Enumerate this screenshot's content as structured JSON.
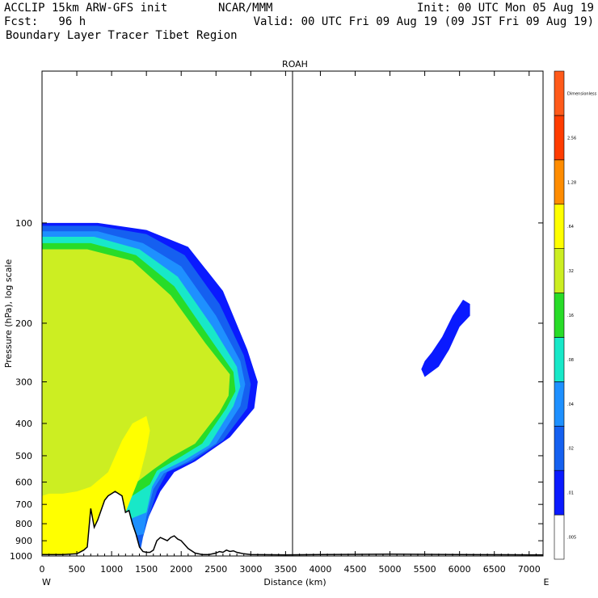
{
  "header": {
    "left_line1": "ACCLIP 15km ARW-GFS init",
    "center_line1": "NCAR/MMM",
    "right_line1": "Init: 00 UTC Mon 05 Aug 19",
    "left_line2": "Fcst:   96 h",
    "right_line2": "Valid: 00 UTC Fri 09 Aug 19 (09 JST Fri 09 Aug 19)",
    "line3": "Boundary Layer Tracer  Tibet Region"
  },
  "chart_data": {
    "type": "heatmap",
    "title": "ROAH",
    "xlabel": "Distance (km)",
    "ylabel": "Pressure (hPa), log scale",
    "x_ticks": [
      "0",
      "500",
      "1000",
      "1500",
      "2000",
      "2500",
      "3000",
      "3500",
      "4000",
      "4500",
      "5000",
      "5500",
      "6000",
      "6500",
      "7000"
    ],
    "x_tick_values": [
      0,
      500,
      1000,
      1500,
      2000,
      2500,
      3000,
      3500,
      4000,
      4500,
      5000,
      5500,
      6000,
      6500,
      7000
    ],
    "y_ticks": [
      "100",
      "200",
      "300",
      "400",
      "500",
      "600",
      "700",
      "800",
      "900",
      "1000"
    ],
    "y_tick_values": [
      100,
      200,
      300,
      400,
      500,
      600,
      700,
      800,
      900,
      1000
    ],
    "xlim": [
      0,
      7200
    ],
    "ylim": [
      1000,
      35
    ],
    "x_end_labels": {
      "left": "W",
      "right": "E"
    },
    "vertical_marker_km": 3600,
    "colorbar": {
      "levels": [
        ".005",
        ".01",
        ".02",
        ".04",
        ".08",
        ".16",
        ".32",
        ".64",
        "1.28",
        "2.56",
        "Dimensionless"
      ],
      "colors": [
        "#ffffff",
        "#0a1aff",
        "#1560f0",
        "#1e90ff",
        "#18e8c8",
        "#28dc28",
        "#ccee22",
        "#ffff00",
        "#ff8c00",
        "#ff3c00",
        "#ff5a1a"
      ]
    },
    "terrain": {
      "distance_km": [
        0,
        100,
        300,
        500,
        600,
        650,
        700,
        750,
        800,
        900,
        950,
        1000,
        1050,
        1100,
        1150,
        1200,
        1250,
        1300,
        1350,
        1400,
        1450,
        1500,
        1550,
        1600,
        1650,
        1700,
        1750,
        1800,
        1850,
        1900,
        1950,
        2000,
        2100,
        2200,
        2300,
        2400,
        2500,
        2550,
        2600,
        2650,
        2700,
        2750,
        2800,
        2900,
        3000,
        3500,
        4000,
        5000,
        6000,
        7000,
        7200
      ],
      "pressure_hPa": [
        990,
        990,
        990,
        985,
        960,
        940,
        720,
        820,
        780,
        680,
        660,
        650,
        640,
        650,
        660,
        740,
        730,
        800,
        860,
        940,
        970,
        975,
        975,
        960,
        900,
        880,
        890,
        900,
        880,
        870,
        890,
        900,
        950,
        980,
        990,
        990,
        980,
        970,
        975,
        960,
        970,
        965,
        975,
        985,
        990,
        992,
        990,
        988,
        990,
        992,
        992
      ]
    },
    "tracer_regions": [
      {
        "level": ".01",
        "distance_km": [
          0,
          800,
          1500,
          2100,
          2600,
          2950,
          3100,
          3050,
          2700,
          2200,
          1900,
          1700,
          1500,
          1420,
          1380,
          1350,
          0
        ],
        "pressure_hPa": [
          100,
          100,
          105,
          118,
          160,
          240,
          300,
          360,
          440,
          520,
          560,
          640,
          790,
          900,
          960,
          990,
          990
        ]
      },
      {
        "level": ".01",
        "distance_km": [
          5550,
          5700,
          5850,
          6000,
          6150,
          6150,
          6050,
          5900,
          5750,
          5600,
          5500,
          5450,
          5500
        ],
        "pressure_hPa": [
          285,
          270,
          240,
          205,
          190,
          175,
          170,
          190,
          220,
          245,
          260,
          275,
          290
        ]
      },
      {
        "level": ".02",
        "distance_km": [
          0,
          800,
          1500,
          2050,
          2550,
          2900,
          3000,
          2950,
          2600,
          2150,
          1800,
          1650,
          1520,
          1450,
          1420,
          0
        ],
        "pressure_hPa": [
          102,
          102,
          108,
          125,
          175,
          250,
          305,
          360,
          450,
          520,
          560,
          640,
          780,
          880,
          950,
          990
        ]
      },
      {
        "level": ".04",
        "distance_km": [
          0,
          800,
          1450,
          2000,
          2500,
          2850,
          2920,
          2850,
          2500,
          2100,
          1750,
          1600,
          1500,
          1460,
          0
        ],
        "pressure_hPa": [
          106,
          106,
          115,
          135,
          190,
          260,
          305,
          355,
          460,
          520,
          565,
          630,
          760,
          860,
          990
        ]
      },
      {
        "level": ".08",
        "distance_km": [
          0,
          750,
          1400,
          1950,
          2450,
          2800,
          2850,
          2750,
          2400,
          2050,
          1700,
          1580,
          1500,
          0
        ],
        "pressure_hPa": [
          110,
          110,
          120,
          145,
          205,
          270,
          310,
          355,
          465,
          515,
          560,
          620,
          740,
          990
        ]
      },
      {
        "level": ".16",
        "distance_km": [
          0,
          700,
          1350,
          1900,
          2400,
          2750,
          2780,
          2650,
          2300,
          1950,
          1650,
          1550,
          0
        ],
        "pressure_hPa": [
          115,
          115,
          125,
          155,
          220,
          280,
          320,
          360,
          460,
          510,
          555,
          610,
          990
        ]
      },
      {
        "level": ".32",
        "distance_km": [
          0,
          650,
          1300,
          1850,
          2350,
          2700,
          2680,
          2550,
          2200,
          1850,
          1600,
          0
        ],
        "pressure_hPa": [
          120,
          120,
          130,
          165,
          230,
          285,
          330,
          370,
          460,
          505,
          550,
          990
        ]
      },
      {
        "level": ".64",
        "distance_km": [
          0,
          900,
          1200,
          1400,
          1500,
          1550,
          1500,
          1300,
          1150,
          950,
          700,
          500,
          300,
          100,
          0
        ],
        "pressure_hPa": [
          990,
          985,
          740,
          580,
          480,
          420,
          380,
          400,
          450,
          560,
          620,
          640,
          650,
          650,
          660
        ]
      }
    ]
  }
}
